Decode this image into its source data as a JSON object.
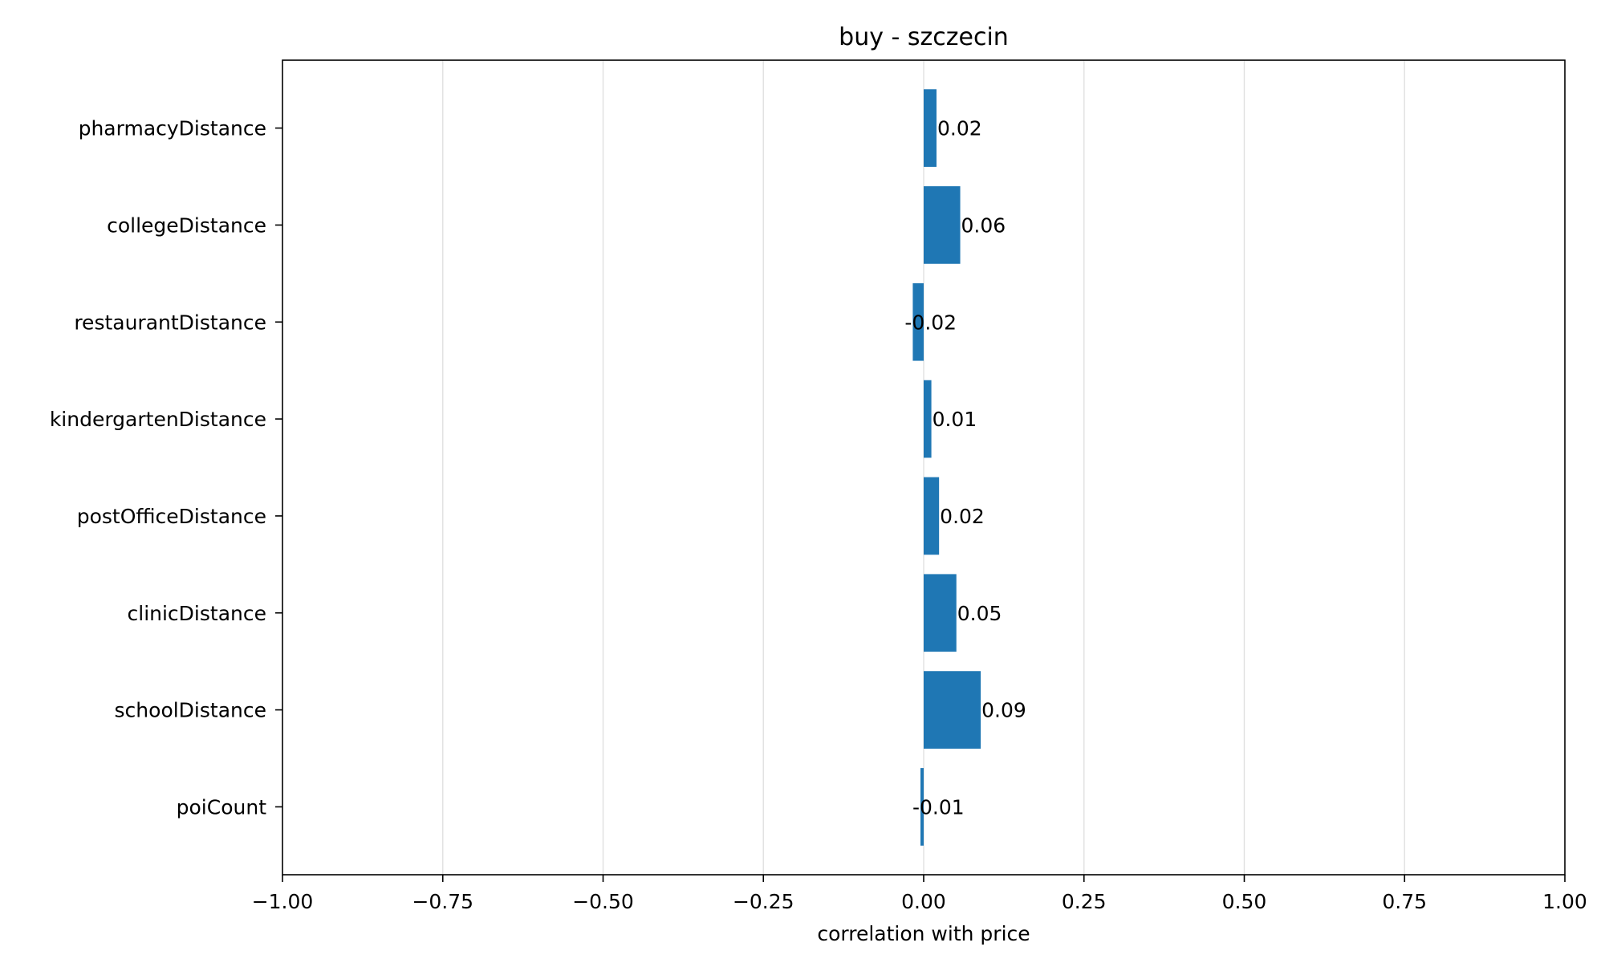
{
  "chart_data": {
    "type": "bar",
    "orientation": "horizontal",
    "title": "buy - szczecin",
    "xlabel": "correlation with price",
    "ylabel": "",
    "xlim": [
      -1.0,
      1.0
    ],
    "x_ticks": [
      -1.0,
      -0.75,
      -0.5,
      -0.25,
      0.0,
      0.25,
      0.5,
      0.75,
      1.0
    ],
    "x_tick_labels": [
      "−1.00",
      "−0.75",
      "−0.50",
      "−0.25",
      "0.00",
      "0.25",
      "0.50",
      "0.75",
      "1.00"
    ],
    "grid": "vertical",
    "categories": [
      "pharmacyDistance",
      "collegeDistance",
      "restaurantDistance",
      "kindergartenDistance",
      "postOfficeDistance",
      "clinicDistance",
      "schoolDistance",
      "poiCount"
    ],
    "values": [
      0.02,
      0.057,
      -0.017,
      0.012,
      0.024,
      0.051,
      0.089,
      -0.005
    ],
    "value_labels": [
      "0.02",
      "0.06",
      "-0.02",
      "0.01",
      "0.02",
      "0.05",
      "0.09",
      "-0.01"
    ],
    "colors": {
      "bar": "#1f77b4",
      "grid": "#e0e0e0",
      "axis": "#000000"
    }
  }
}
